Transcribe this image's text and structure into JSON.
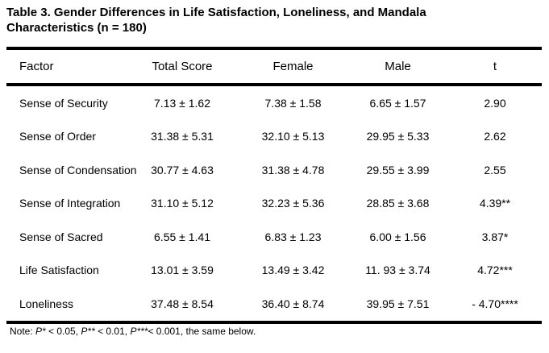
{
  "title": "Table 3. Gender Differences in Life Satisfaction, Loneliness, and Mandala Characteristics (n = 180)",
  "table": {
    "headers": [
      "Factor",
      "Total Score",
      "Female",
      "Male",
      "t"
    ],
    "column_keys": [
      "factor",
      "total",
      "female",
      "male",
      "t"
    ],
    "rows": [
      {
        "factor": "Sense of Security",
        "total": "7.13 ± 1.62",
        "female": "7.38 ± 1.58",
        "male": "6.65 ± 1.57",
        "t": "2.90"
      },
      {
        "factor": "Sense of Order",
        "total": "31.38 ± 5.31",
        "female": "32.10 ± 5.13",
        "male": "29.95 ± 5.33",
        "t": "2.62"
      },
      {
        "factor": "Sense of Condensation",
        "total": "30.77 ± 4.63",
        "female": "31.38 ± 4.78",
        "male": "29.55 ± 3.99",
        "t": "2.55"
      },
      {
        "factor": "Sense of Integration",
        "total": "31.10 ± 5.12",
        "female": "32.23 ± 5.36",
        "male": "28.85 ± 3.68",
        "t": "4.39**"
      },
      {
        "factor": "Sense of Sacred",
        "total": "6.55 ± 1.41",
        "female": "6.83 ± 1.23",
        "male": "6.00 ± 1.56",
        "t": "3.87*"
      },
      {
        "factor": "Life Satisfaction",
        "total": "13.01 ± 3.59",
        "female": "13.49 ± 3.42",
        "male": "11. 93 ± 3.74",
        "t": "4.72***"
      },
      {
        "factor": "Loneliness",
        "total": "37.48 ± 8.54",
        "female": "36.40 ± 8.74",
        "male": "39.95 ± 7.51",
        "t": "- 4.70****"
      }
    ]
  },
  "note": {
    "prefix": "Note: ",
    "segments": [
      {
        "italic": "P*",
        "text": " < 0.05, "
      },
      {
        "italic": "P**",
        "text": " < 0.01, "
      },
      {
        "italic": "P***",
        "text": "< 0.001, the same below."
      }
    ]
  },
  "colors": {
    "text": "#000000",
    "rule": "#000000",
    "background": "#ffffff"
  }
}
